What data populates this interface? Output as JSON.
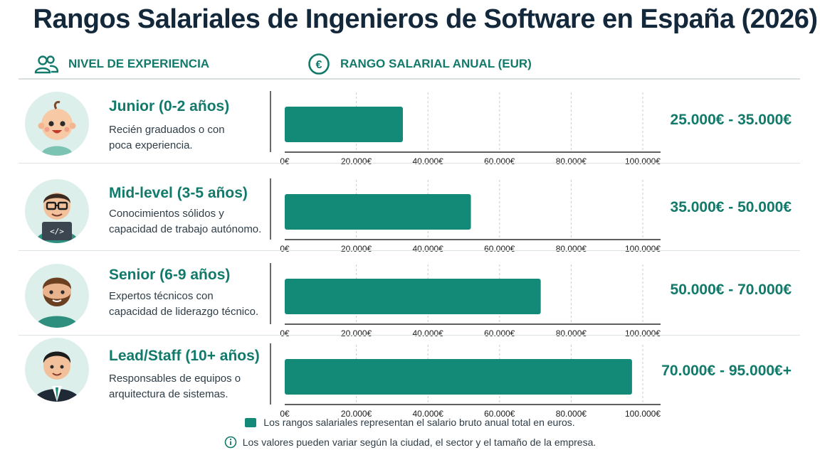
{
  "title": "Rangos Salariales de Ingenieros de Software en España (2026)",
  "headers": {
    "level": "NIVEL DE EXPERIENCIA",
    "salary": "RANGO SALARIAL ANUAL (EUR)",
    "level_icon": "people-icon",
    "salary_icon": "euro-icon"
  },
  "colors": {
    "accent": "#127a6a",
    "bar": "#138a78",
    "avatar_bg": "#dcefeb"
  },
  "levels": [
    {
      "title": "Junior (0-2 años)",
      "desc1": "Recién graduados o con",
      "desc2": "poca experiencia.",
      "range": "25.000€ - 35.000€",
      "avatar": "baby-avatar-icon"
    },
    {
      "title": "Mid-level (3-5 años)",
      "desc1": "Conocimientos sólidos y",
      "desc2": "capacidad de trabajo autónomo.",
      "range": "35.000€ - 50.000€",
      "avatar": "developer-with-laptop-avatar-icon"
    },
    {
      "title": "Senior (6-9 años)",
      "desc1": "Expertos técnicos con",
      "desc2": "capacidad de liderazgo técnico.",
      "range": "50.000€ - 70.000€",
      "avatar": "bearded-man-avatar-icon"
    },
    {
      "title": "Lead/Staff (10+ años)",
      "desc1": "Responsables de equipos o",
      "desc2": "arquitectura de sistemas.",
      "range": "70.000€ - 95.000€+",
      "avatar": "man-in-suit-avatar-icon"
    }
  ],
  "chart_data": {
    "type": "bar",
    "orientation": "horizontal",
    "categories": [
      "Junior (0-2 años)",
      "Mid-level (3-5 años)",
      "Senior (6-9 años)",
      "Lead/Staff (10+ años)"
    ],
    "values": [
      33000,
      52000,
      71500,
      97000
    ],
    "xlim": [
      0,
      100000
    ],
    "ticks": [
      0,
      20000,
      40000,
      60000,
      80000,
      100000
    ],
    "tick_labels": [
      "0€",
      "20.000€",
      "40.000€",
      "60.000€",
      "80.000€",
      "100.000€"
    ],
    "grid": "vertical dashed",
    "legend": "bottom"
  },
  "legend_text": "Los rangos salariales representan el salario bruto anual total en euros.",
  "note_text": "Los valores pueden variar según la ciudad, el sector y el tamaño de la empresa."
}
